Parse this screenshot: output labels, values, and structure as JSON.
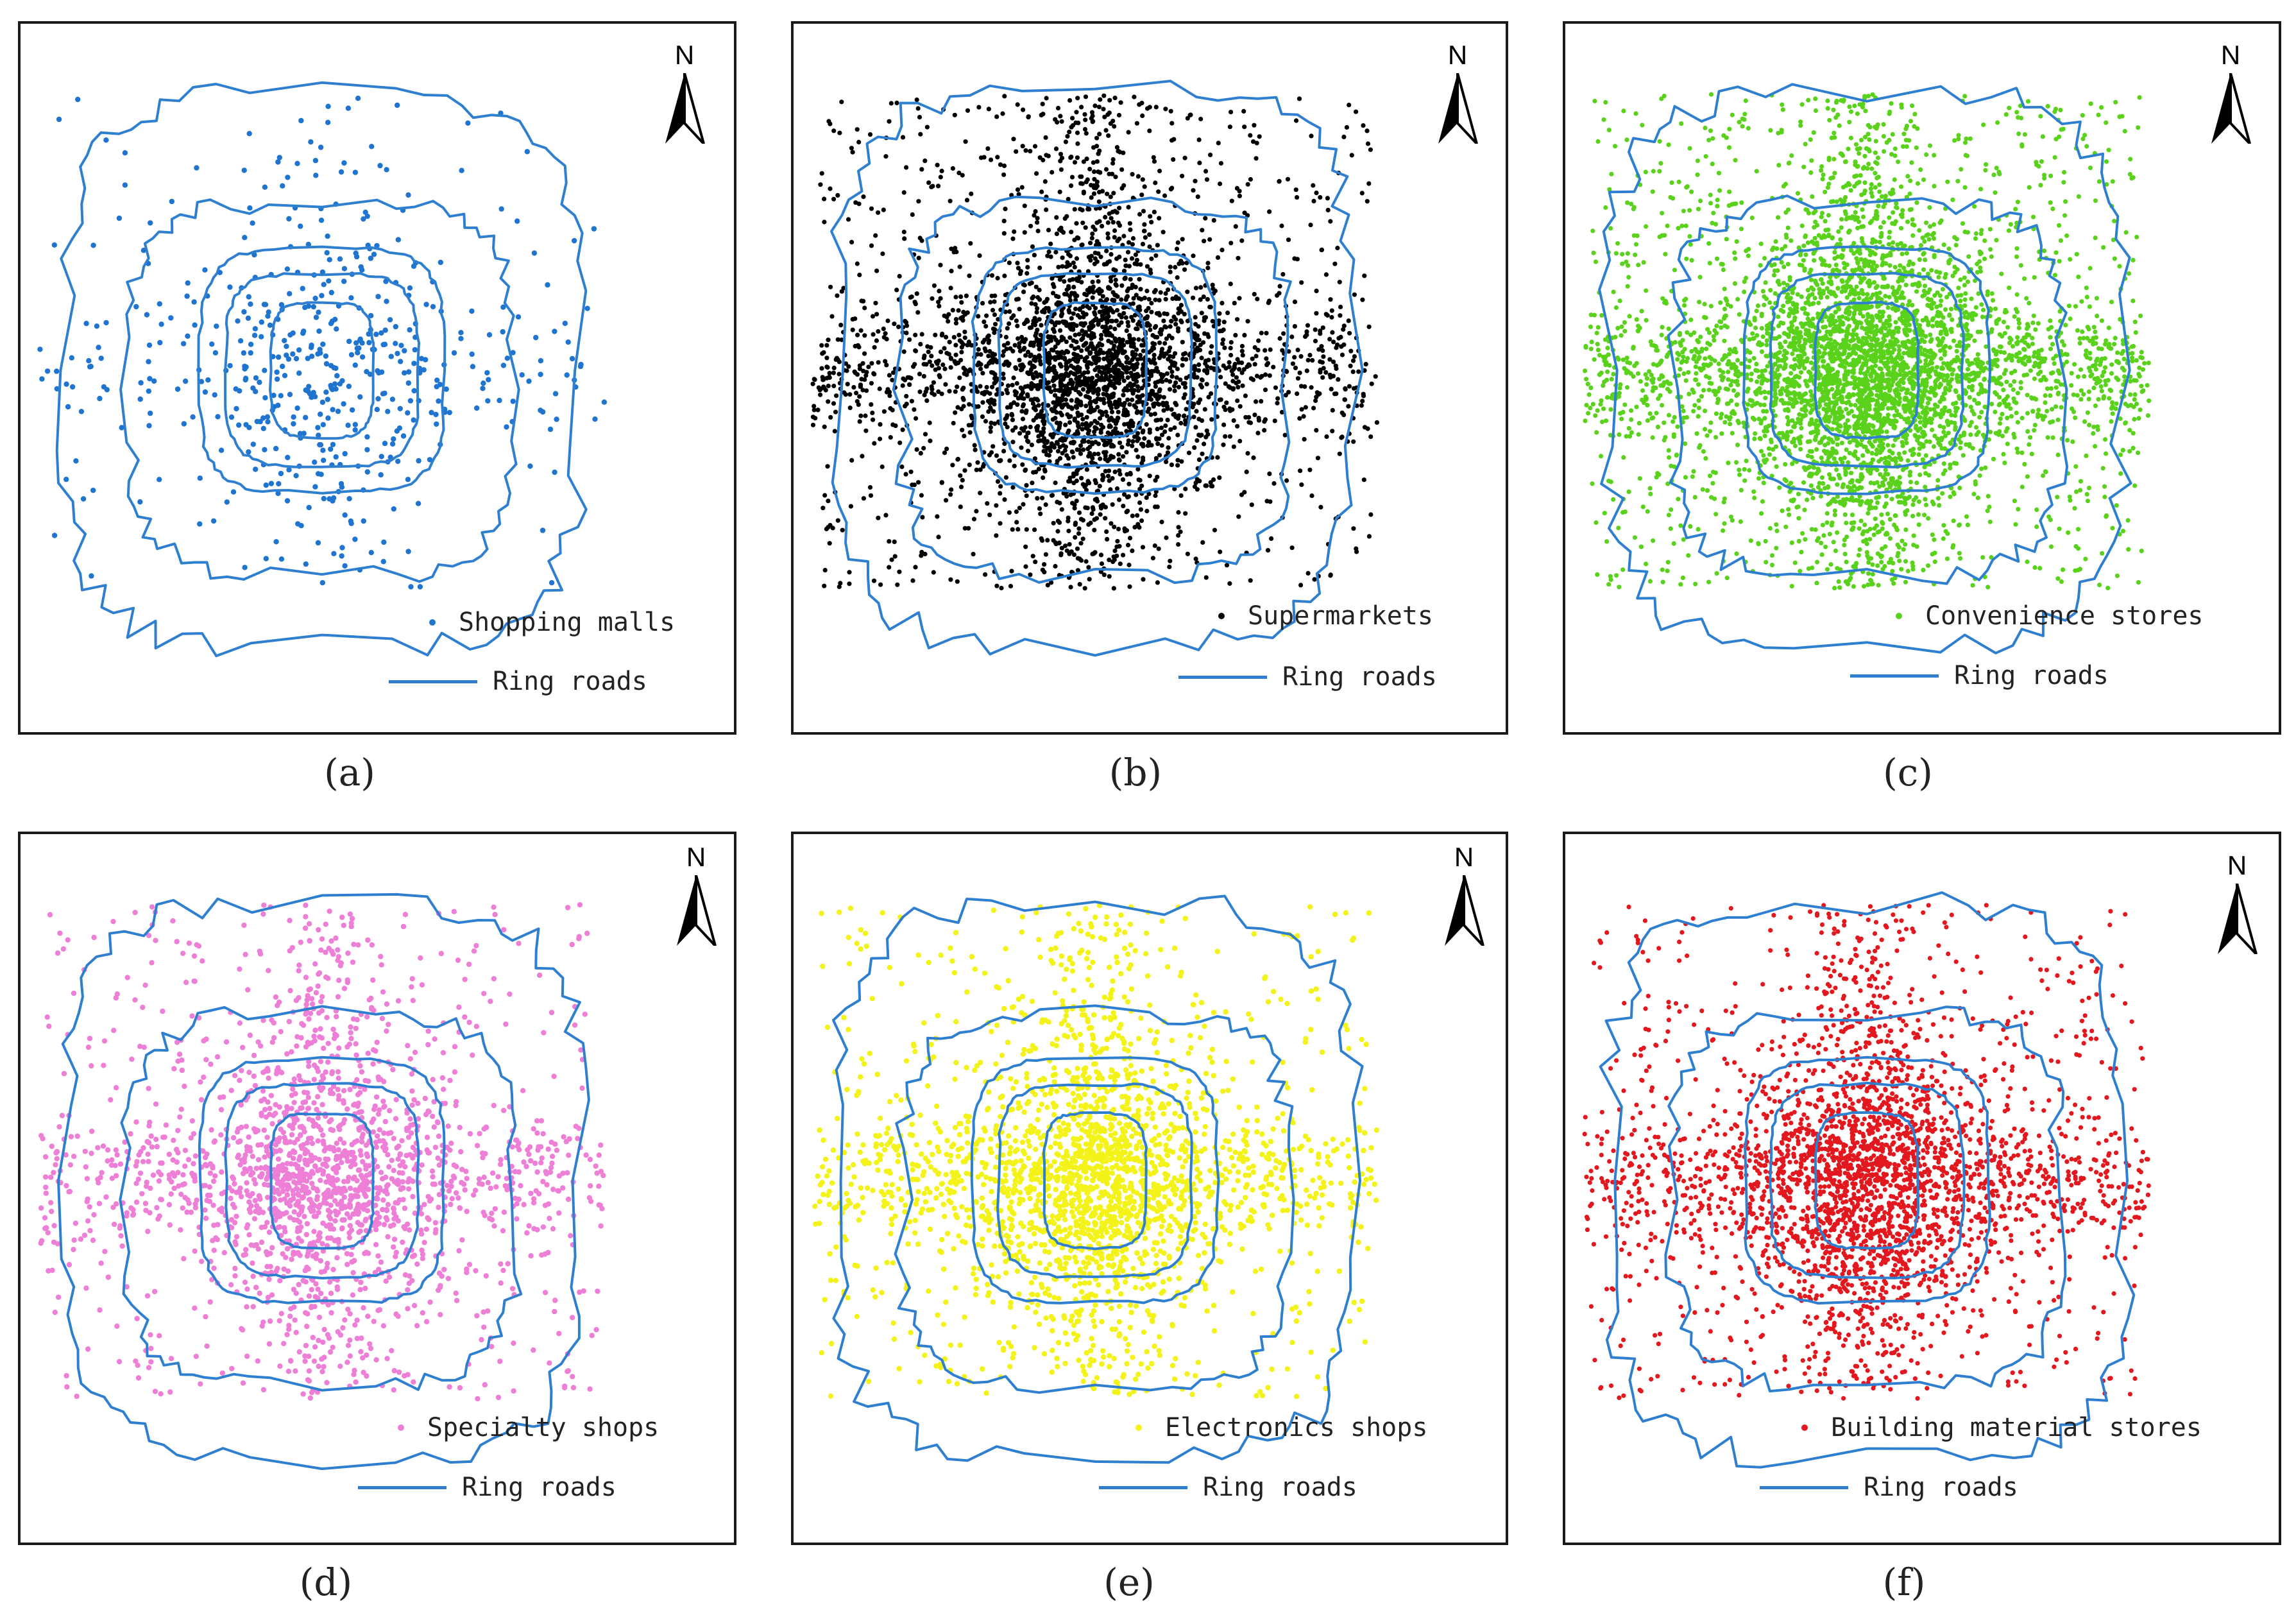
{
  "colors": {
    "ring_roads": "#2f7fd0"
  },
  "north_label": "N",
  "ring_roads_label": "Ring roads",
  "panels": [
    {
      "caption": "(a)",
      "legend": "Shopping malls",
      "color": "#1f74d0",
      "density": 0.8,
      "seed": 11
    },
    {
      "caption": "(b)",
      "legend": "Supermarkets",
      "color": "#000000",
      "density": 5.0,
      "seed": 23
    },
    {
      "caption": "(c)",
      "legend": "Convenience stores",
      "color": "#5ad21c",
      "density": 7.0,
      "seed": 37
    },
    {
      "caption": "(d)",
      "legend": "Specialty shops",
      "color": "#ee7fd6",
      "density": 3.0,
      "seed": 41
    },
    {
      "caption": "(e)",
      "legend": "Electronics shops",
      "color": "#f3f31a",
      "density": 3.5,
      "seed": 53
    },
    {
      "caption": "(f)",
      "legend": "Building material stores",
      "color": "#e3181f",
      "density": 4.5,
      "seed": 67
    }
  ]
}
